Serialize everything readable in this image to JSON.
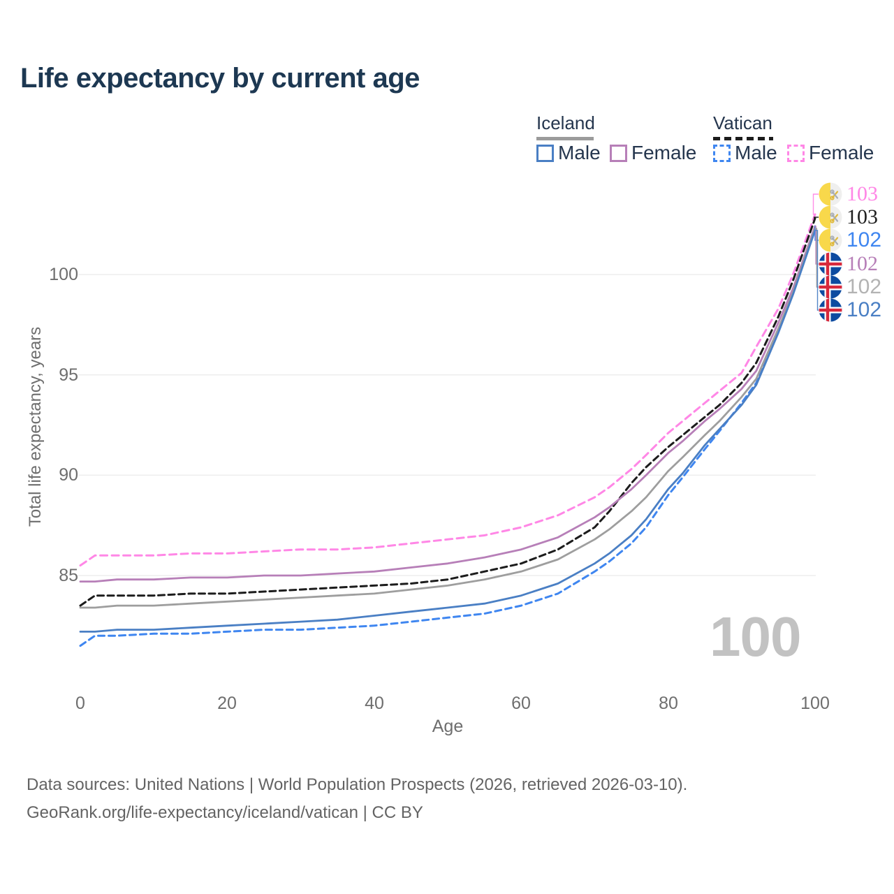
{
  "title": "Life expectancy by current age",
  "legend": {
    "groups": [
      {
        "label": "Iceland",
        "line_style": "solid",
        "underline_color": "#9b9b9b"
      },
      {
        "label": "Vatican",
        "line_style": "dashed",
        "underline_color": "#1c1c1c"
      }
    ],
    "items": [
      {
        "label": "Male",
        "country": "Iceland",
        "style": "solid",
        "color": "#4a7fc4"
      },
      {
        "label": "Female",
        "country": "Iceland",
        "style": "solid",
        "color": "#b77fb8"
      },
      {
        "label": "Male",
        "country": "Vatican",
        "style": "dashed",
        "color": "#3f86f0"
      },
      {
        "label": "Female",
        "country": "Vatican",
        "style": "dashed",
        "color": "#ff87e6"
      }
    ]
  },
  "watermark_age": "100",
  "chart_data": {
    "type": "line",
    "title": "Life expectancy by current age",
    "xlabel": "Age",
    "ylabel": "Total life expectancy, years",
    "x_ticks": [
      0,
      20,
      40,
      60,
      80,
      100
    ],
    "y_ticks": [
      85,
      90,
      95,
      100
    ],
    "xlim": [
      0,
      100
    ],
    "ylim": [
      80.5,
      104
    ],
    "grid": "horizontal",
    "legend_position": "top-right",
    "x": [
      0,
      2,
      5,
      10,
      15,
      20,
      25,
      30,
      35,
      40,
      45,
      50,
      55,
      60,
      65,
      70,
      72,
      75,
      77,
      80,
      82,
      85,
      87,
      90,
      92,
      95,
      97,
      100
    ],
    "series": [
      {
        "name": "Vatican Female",
        "color": "#ff87e6",
        "dash": true,
        "end_label": "103",
        "values": [
          85.5,
          86.0,
          86.0,
          86.0,
          86.1,
          86.1,
          86.2,
          86.3,
          86.3,
          86.4,
          86.6,
          86.8,
          87.0,
          87.4,
          88.0,
          88.9,
          89.4,
          90.3,
          91.0,
          92.1,
          92.7,
          93.6,
          94.2,
          95.1,
          96.4,
          98.3,
          100.0,
          103.0
        ]
      },
      {
        "name": "Vatican",
        "color": "#1c1c1c",
        "dash": true,
        "end_label": "103",
        "values": [
          83.5,
          84.0,
          84.0,
          84.0,
          84.1,
          84.1,
          84.2,
          84.3,
          84.4,
          84.5,
          84.6,
          84.8,
          85.2,
          85.6,
          86.3,
          87.4,
          88.2,
          89.6,
          90.4,
          91.4,
          92.0,
          92.9,
          93.5,
          94.6,
          95.6,
          97.9,
          99.7,
          102.8
        ]
      },
      {
        "name": "Vatican Male",
        "color": "#3f86f0",
        "dash": true,
        "end_label": "102",
        "values": [
          81.5,
          82.0,
          82.0,
          82.1,
          82.1,
          82.2,
          82.3,
          82.3,
          82.4,
          82.5,
          82.7,
          82.9,
          83.1,
          83.5,
          84.1,
          85.2,
          85.7,
          86.6,
          87.4,
          89.0,
          89.9,
          91.3,
          92.2,
          93.6,
          94.6,
          97.2,
          99.1,
          102.4
        ]
      },
      {
        "name": "Iceland Female",
        "color": "#b77fb8",
        "dash": false,
        "end_label": "102",
        "values": [
          84.7,
          84.7,
          84.8,
          84.8,
          84.9,
          84.9,
          85.0,
          85.0,
          85.1,
          85.2,
          85.4,
          85.6,
          85.9,
          86.3,
          86.9,
          87.9,
          88.4,
          89.3,
          90.0,
          91.1,
          91.7,
          92.7,
          93.3,
          94.3,
          95.2,
          97.6,
          99.3,
          102.4
        ]
      },
      {
        "name": "Iceland",
        "color": "#9e9e9e",
        "dash": false,
        "end_label": "102",
        "values": [
          83.4,
          83.4,
          83.5,
          83.5,
          83.6,
          83.7,
          83.8,
          83.9,
          84.0,
          84.1,
          84.3,
          84.5,
          84.8,
          85.2,
          85.8,
          86.8,
          87.3,
          88.2,
          88.9,
          90.2,
          90.9,
          92.0,
          92.7,
          93.9,
          94.8,
          97.3,
          99.1,
          102.3
        ]
      },
      {
        "name": "Iceland Male",
        "color": "#4a7fc4",
        "dash": false,
        "end_label": "102",
        "values": [
          82.2,
          82.2,
          82.3,
          82.3,
          82.4,
          82.5,
          82.6,
          82.7,
          82.8,
          83.0,
          83.2,
          83.4,
          83.6,
          84.0,
          84.6,
          85.6,
          86.1,
          87.0,
          87.8,
          89.3,
          90.1,
          91.5,
          92.3,
          93.5,
          94.5,
          97.1,
          99.0,
          102.2
        ]
      }
    ]
  },
  "endpoint_labels": [
    {
      "flag": "vatican-flag-icon",
      "value": "103",
      "color": "#ff87e6"
    },
    {
      "flag": "vatican-flag-icon",
      "value": "103",
      "color": "#1f1f1f"
    },
    {
      "flag": "vatican-flag-icon",
      "value": "102",
      "color": "#3f86f0"
    },
    {
      "flag": "iceland-flag-icon",
      "value": "102",
      "color": "#b77fb8"
    },
    {
      "flag": "iceland-flag-icon",
      "value": "102",
      "color": "#b3b3b3"
    },
    {
      "flag": "iceland-flag-icon",
      "value": "102",
      "color": "#4a7fc4"
    }
  ],
  "footer": {
    "line1": "Data sources: United Nations | World Population Prospects (2026, retrieved 2026-03-10).",
    "line2": "GeoRank.org/life-expectancy/iceland/vatican | CC BY"
  }
}
